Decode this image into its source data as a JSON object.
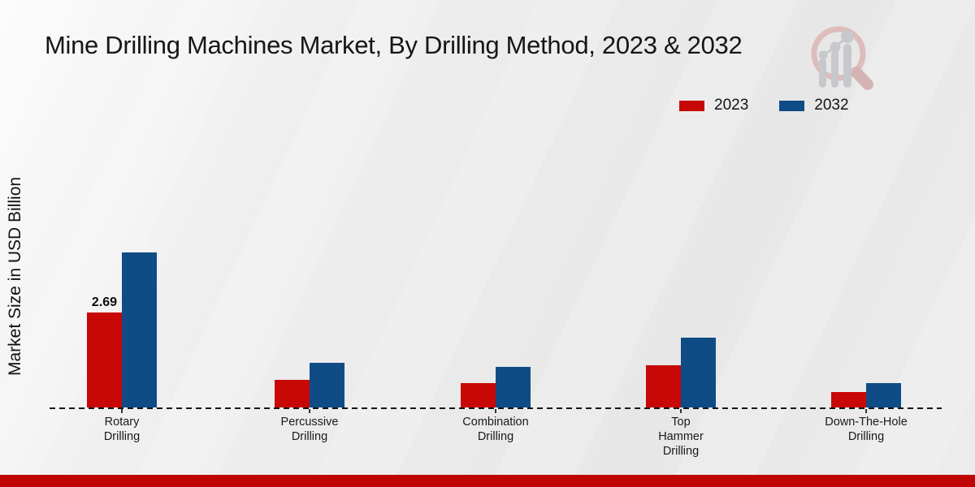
{
  "page": {
    "title": "Mine Drilling Machines Market, By Drilling Method, 2023 & 2032",
    "footer_color": "#c00303"
  },
  "chart_data": {
    "type": "bar",
    "title": "Mine Drilling Machines Market, By Drilling Method, 2023 & 2032",
    "ylabel": "Market Size in USD Billion",
    "xlabel": "",
    "categories": [
      "Rotary\nDrilling",
      "Percussive\nDrilling",
      "Combination\nDrilling",
      "Top\nHammer\nDrilling",
      "Down-The-Hole\nDrilling"
    ],
    "series": [
      {
        "name": "2023",
        "color": "#c80707",
        "values": [
          2.69,
          0.78,
          0.69,
          1.2,
          0.44
        ],
        "value_labels": [
          "2.69",
          "",
          "",
          "",
          ""
        ]
      },
      {
        "name": "2032",
        "color": "#0f4c86",
        "values": [
          4.4,
          1.26,
          1.15,
          1.98,
          0.69
        ]
      }
    ],
    "ylim": [
      0,
      4.6
    ],
    "grid": false,
    "axis_style": "dashed-baseline-only",
    "legend_position": "top-right",
    "legend_entries": [
      "2023",
      "2032"
    ]
  }
}
